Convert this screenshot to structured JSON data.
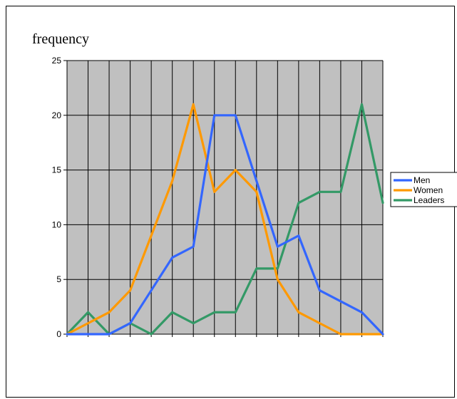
{
  "chart_data": {
    "type": "line",
    "title": "",
    "ylabel": "frequency",
    "xlabel": "",
    "ylim": [
      0,
      25
    ],
    "yticks": [
      "0",
      "5",
      "10",
      "15",
      "20",
      "25"
    ],
    "x": [
      0,
      1,
      2,
      3,
      4,
      5,
      6,
      7,
      8,
      9,
      10,
      11,
      12,
      13,
      14,
      15
    ],
    "grid": true,
    "legend_position": "right",
    "plot_background": "#c0c0c0",
    "series": [
      {
        "name": "Men",
        "color": "#3366ff",
        "values": [
          0,
          0,
          0,
          1,
          4,
          7,
          8,
          20,
          20,
          14,
          8,
          9,
          4,
          3,
          2,
          0
        ]
      },
      {
        "name": "Women",
        "color": "#ff9900",
        "values": [
          0,
          1,
          2,
          4,
          9,
          14,
          21,
          13,
          15,
          13,
          5,
          2,
          1,
          0,
          0,
          0
        ]
      },
      {
        "name": "Leaders",
        "color": "#339966",
        "values": [
          0,
          2,
          0,
          1,
          0,
          2,
          1,
          2,
          2,
          6,
          6,
          12,
          13,
          13,
          21,
          12
        ]
      }
    ]
  }
}
